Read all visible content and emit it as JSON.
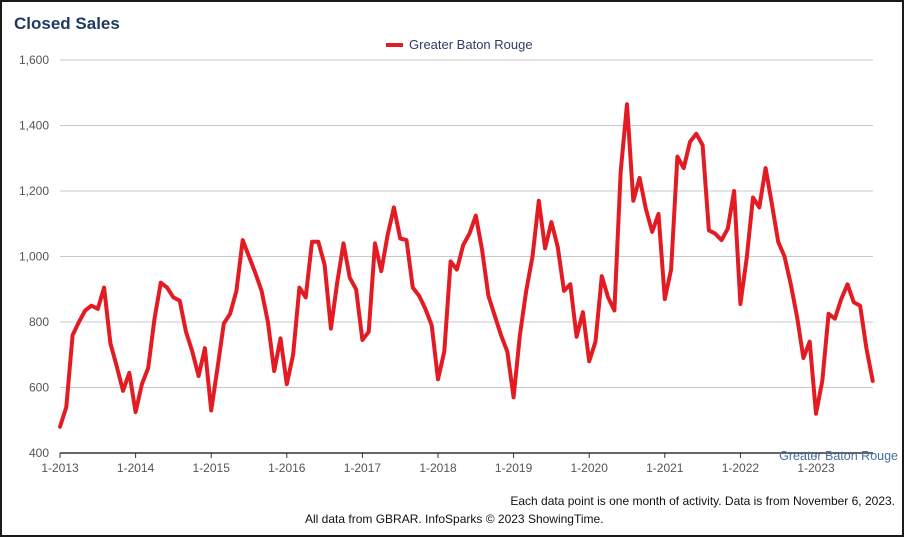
{
  "title": "Closed Sales",
  "legend": {
    "label": "Greater Baton Rouge"
  },
  "source_label": "Greater Baton Rouge",
  "footnote": "Each data point is one month of activity. Data is from November 6, 2023.",
  "credit": "All data from GBRAR. InfoSparks © 2023 ShowingTime.",
  "colors": {
    "series": "#e31b23",
    "grid": "#c8c8c8",
    "axis": "#333333",
    "title": "#1f3a63"
  },
  "chart_data": {
    "type": "line",
    "title": "Closed Sales",
    "xlabel": "",
    "ylabel": "",
    "ylim": [
      400,
      1600
    ],
    "y_ticks": [
      400,
      600,
      800,
      1000,
      1200,
      1400,
      1600
    ],
    "y_tick_labels": [
      "400",
      "600",
      "800",
      "1,000",
      "1,200",
      "1,400",
      "1,600"
    ],
    "x_tick_labels": [
      "1-2013",
      "1-2014",
      "1-2015",
      "1-2016",
      "1-2017",
      "1-2018",
      "1-2019",
      "1-2020",
      "1-2021",
      "1-2022",
      "1-2023"
    ],
    "x_start": "2013-01",
    "grid": true,
    "legend_position": "top-center",
    "series": [
      {
        "name": "Greater Baton Rouge",
        "color": "#e31b23",
        "values": [
          480,
          540,
          760,
          800,
          835,
          850,
          840,
          905,
          735,
          665,
          590,
          645,
          525,
          610,
          660,
          810,
          920,
          905,
          875,
          865,
          770,
          710,
          635,
          720,
          530,
          660,
          795,
          825,
          895,
          1050,
          1000,
          950,
          895,
          800,
          650,
          750,
          610,
          700,
          905,
          875,
          1045,
          1045,
          975,
          780,
          920,
          1040,
          935,
          900,
          745,
          770,
          1040,
          955,
          1065,
          1150,
          1055,
          1050,
          905,
          880,
          840,
          790,
          625,
          710,
          985,
          960,
          1035,
          1070,
          1125,
          1020,
          880,
          820,
          760,
          710,
          570,
          760,
          895,
          1000,
          1170,
          1025,
          1105,
          1030,
          895,
          915,
          755,
          830,
          680,
          740,
          940,
          875,
          835,
          1260,
          1465,
          1170,
          1240,
          1145,
          1075,
          1130,
          870,
          960,
          1305,
          1270,
          1350,
          1375,
          1340,
          1080,
          1070,
          1050,
          1085,
          1200,
          855,
          995,
          1180,
          1150,
          1270,
          1160,
          1045,
          1000,
          915,
          815,
          690,
          740,
          520,
          620,
          825,
          810,
          870,
          915,
          860,
          850,
          720,
          620
        ]
      }
    ]
  }
}
